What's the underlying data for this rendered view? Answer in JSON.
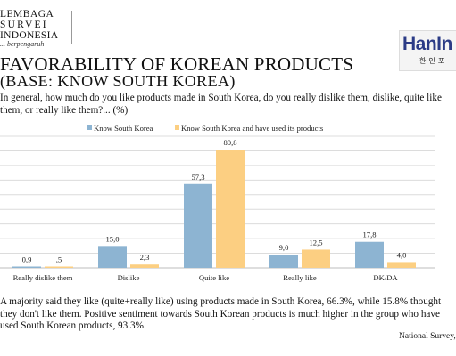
{
  "logo_left": {
    "line1": "LEMBAGA",
    "line2": "SURVEI",
    "line3": "INDONESIA",
    "tagline": "... berpengaruh"
  },
  "logo_right": {
    "name": "HanIn",
    "korean": "한인포"
  },
  "title": "FAVORABILITY OF KOREAN PRODUCTS",
  "subtitle": "(BASE: KNOW SOUTH KOREA)",
  "question": "In general, how much do you like products made in South Korea, do you really dislike them, dislike, quite like them, or really like them?... (%)",
  "footer": "A majority said they like (quite+really like) using products made in South Korea, 66.3%, while 15.8% thought they don't like them. Positive sentiment towards South Korean products is much higher in the group who have used South Korean products, 93.3%.",
  "source": "National Survey, S",
  "chart_data": {
    "type": "bar",
    "categories": [
      "Really dislike them",
      "Dislike",
      "Quite like",
      "Really like",
      "DK/DA"
    ],
    "series": [
      {
        "name": "Know South Korea",
        "color": "#8db4d2",
        "values": [
          0.9,
          15.0,
          57.3,
          9.0,
          17.8
        ],
        "labels": [
          "0,9",
          "15,0",
          "57,3",
          "9,0",
          "17,8"
        ]
      },
      {
        "name": "Know South Korea and have used its products",
        "color": "#fccf82",
        "values": [
          0.5,
          2.3,
          80.8,
          12.5,
          4.0
        ],
        "labels": [
          ",5",
          "2,3",
          "80,8",
          "12,5",
          "4,0"
        ]
      }
    ],
    "ylim": [
      0,
      90
    ],
    "grid": true,
    "legend": "top"
  }
}
